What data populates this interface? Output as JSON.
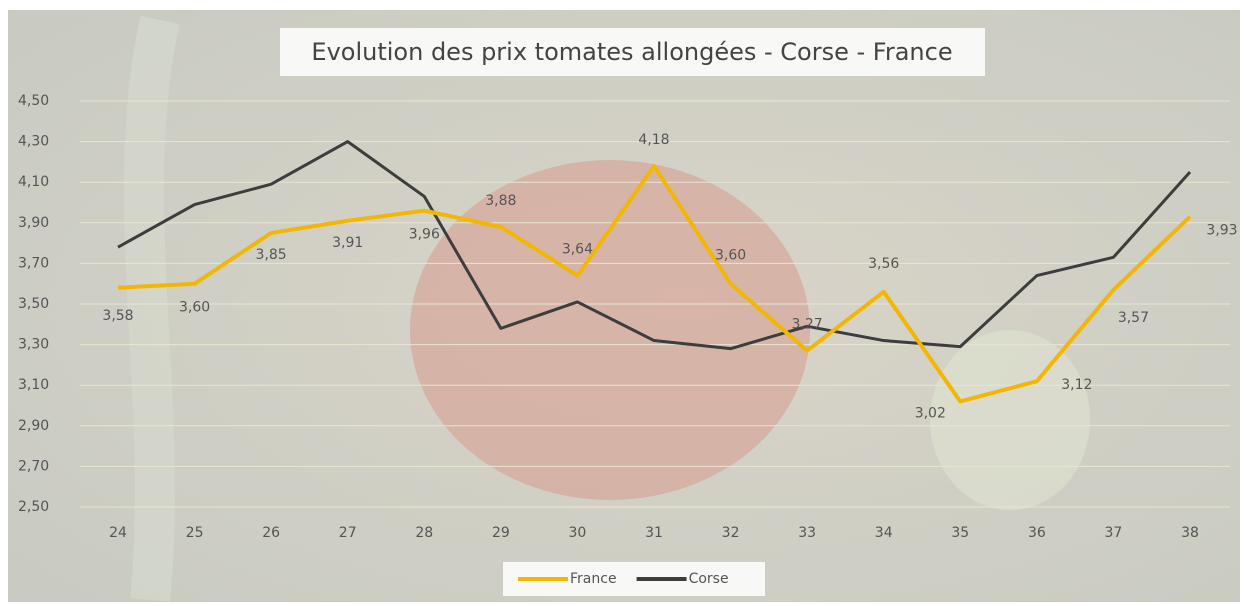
{
  "chart_data": {
    "type": "line",
    "title": "Evolution des prix tomates allongées - Corse - France",
    "categories": [
      "24",
      "25",
      "26",
      "27",
      "28",
      "29",
      "30",
      "31",
      "32",
      "33",
      "34",
      "35",
      "36",
      "37",
      "38"
    ],
    "series": [
      {
        "name": "France",
        "color": "#f2b705",
        "values": [
          3.58,
          3.6,
          3.85,
          3.91,
          3.96,
          3.88,
          3.64,
          4.18,
          3.6,
          3.27,
          3.56,
          3.02,
          3.12,
          3.57,
          3.93
        ],
        "value_labels": [
          "3,58",
          "3,60",
          "3,85",
          "3,91",
          "3,96",
          "3,88",
          "3,64",
          "4,18",
          "3,60",
          "3,27",
          "3,56",
          "3,02",
          "3,12",
          "3,57",
          "3,93"
        ]
      },
      {
        "name": "Corse",
        "color": "#3d3d3d",
        "values": [
          3.78,
          3.99,
          4.09,
          4.3,
          4.03,
          3.38,
          3.51,
          3.32,
          3.28,
          3.39,
          3.32,
          3.29,
          3.64,
          3.73,
          4.15
        ]
      }
    ],
    "ylim": [
      2.5,
      4.5
    ],
    "yticks": [
      {
        "value": 2.5,
        "label": "2,50"
      },
      {
        "value": 2.7,
        "label": "2,70"
      },
      {
        "value": 2.9,
        "label": "2,90"
      },
      {
        "value": 3.1,
        "label": "3,10"
      },
      {
        "value": 3.3,
        "label": "3,30"
      },
      {
        "value": 3.5,
        "label": "3,50"
      },
      {
        "value": 3.7,
        "label": "3,70"
      },
      {
        "value": 3.9,
        "label": "3,90"
      },
      {
        "value": 4.1,
        "label": "4,10"
      },
      {
        "value": 4.3,
        "label": "4,30"
      },
      {
        "value": 4.5,
        "label": "4,50"
      }
    ],
    "grid": true,
    "legend": "bottom"
  }
}
